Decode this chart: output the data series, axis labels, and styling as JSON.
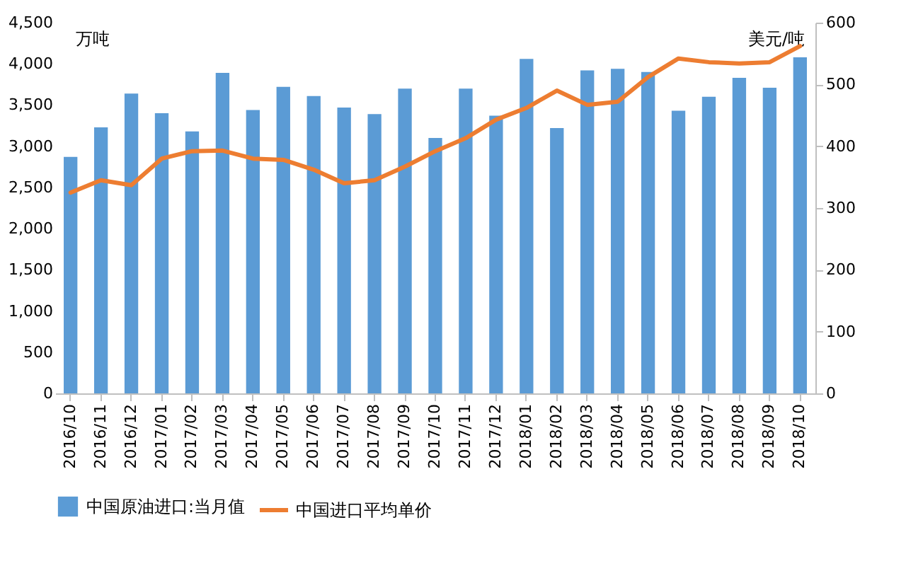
{
  "chart_data": {
    "type": "bar",
    "ylabel": "万吨",
    "y2label": "美元/吨",
    "categories": [
      "2016/10",
      "2016/11",
      "2016/12",
      "2017/01",
      "2017/02",
      "2017/03",
      "2017/04",
      "2017/05",
      "2017/06",
      "2017/07",
      "2017/08",
      "2017/09",
      "2017/10",
      "2017/11",
      "2017/12",
      "2018/01",
      "2018/02",
      "2018/03",
      "2018/04",
      "2018/05",
      "2018/06",
      "2018/07",
      "2018/08",
      "2018/09",
      "2018/10"
    ],
    "series": [
      {
        "name": "中国原油进口:当月值",
        "color": "#5b9bd5",
        "values": [
          2870,
          3230,
          3640,
          3400,
          3180,
          3890,
          3440,
          3720,
          3610,
          3470,
          3390,
          3700,
          3100,
          3700,
          3370,
          4060,
          3220,
          3920,
          3940,
          3900,
          3430,
          3600,
          3830,
          3710,
          4080
        ]
      },
      {
        "name": "中国进口平均单价",
        "type": "line",
        "axis": "y2",
        "color": "#ed7d31",
        "values": [
          325,
          345,
          337,
          380,
          392,
          393,
          380,
          378,
          362,
          340,
          345,
          367,
          392,
          413,
          443,
          462,
          490,
          467,
          472,
          512,
          542,
          536,
          534,
          536,
          562
        ]
      }
    ],
    "ylim": [
      0,
      4500
    ],
    "yticks": [
      {
        "value": 0,
        "label": "0"
      },
      {
        "value": 500,
        "label": "500"
      },
      {
        "value": 1000,
        "label": "1,000"
      },
      {
        "value": 1500,
        "label": "1,500"
      },
      {
        "value": 2000,
        "label": "2,000"
      },
      {
        "value": 2500,
        "label": "2,500"
      },
      {
        "value": 3000,
        "label": "3,000"
      },
      {
        "value": 3500,
        "label": "3,500"
      },
      {
        "value": 4000,
        "label": "4,000"
      },
      {
        "value": 4500,
        "label": "4,500"
      }
    ],
    "y2lim": [
      0,
      600
    ],
    "y2ticks": [
      0,
      100,
      200,
      300,
      400,
      500,
      600
    ],
    "grid": false,
    "legend": "bottom",
    "marker": "none",
    "line_style": "solid"
  }
}
